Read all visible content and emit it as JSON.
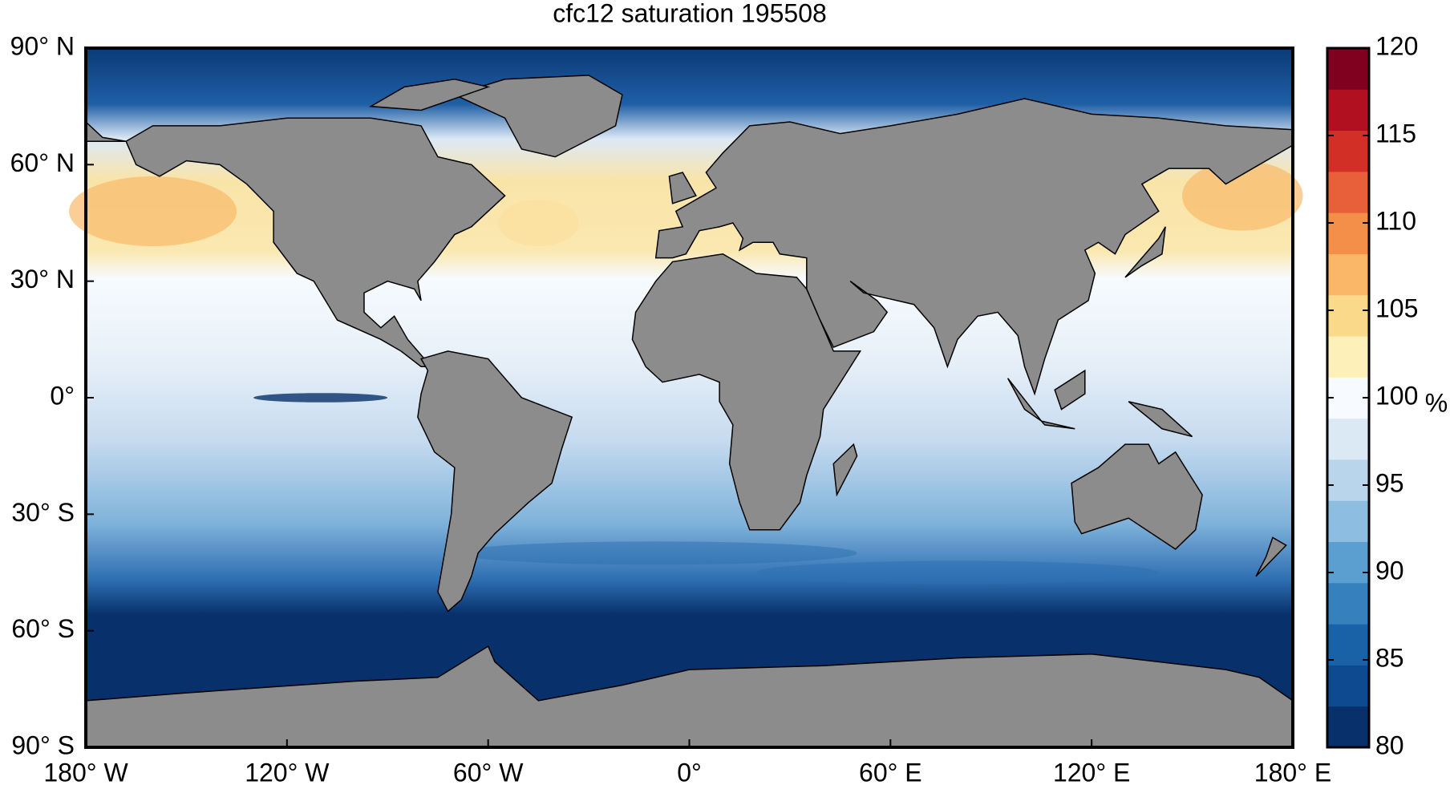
{
  "map": {
    "title": "cfc12 saturation 195508",
    "lonlim": [
      -180,
      180
    ],
    "latlim": [
      -90,
      90
    ],
    "lon_ticks": [
      {
        "value": -180,
        "label": "180° W"
      },
      {
        "value": -120,
        "label": "120° W"
      },
      {
        "value": -60,
        "label": "60° W"
      },
      {
        "value": 0,
        "label": "0°"
      },
      {
        "value": 60,
        "label": "60° E"
      },
      {
        "value": 120,
        "label": "120° E"
      },
      {
        "value": 180,
        "label": "180° E"
      }
    ],
    "lat_ticks": [
      {
        "value": 90,
        "label": "90° N"
      },
      {
        "value": 60,
        "label": "60° N"
      },
      {
        "value": 30,
        "label": "30° N"
      },
      {
        "value": 0,
        "label": "0°"
      },
      {
        "value": -30,
        "label": "30° S"
      },
      {
        "value": -60,
        "label": "60° S"
      },
      {
        "value": -90,
        "label": "90° S"
      }
    ],
    "colorbar": {
      "label": "%",
      "lim": [
        80,
        120
      ],
      "ticks": [
        80,
        85,
        90,
        95,
        100,
        105,
        110,
        115,
        120
      ],
      "colors": [
        "#08306b",
        "#0d4a8f",
        "#1a62a8",
        "#3580bd",
        "#5a9fcf",
        "#8dbde0",
        "#b8d5ec",
        "#dbe9f5",
        "#f7fbff",
        "#fdf0b8",
        "#fbd98a",
        "#f9b767",
        "#f48f4a",
        "#e8603a",
        "#d23027",
        "#b0101f",
        "#800020"
      ]
    }
  }
}
